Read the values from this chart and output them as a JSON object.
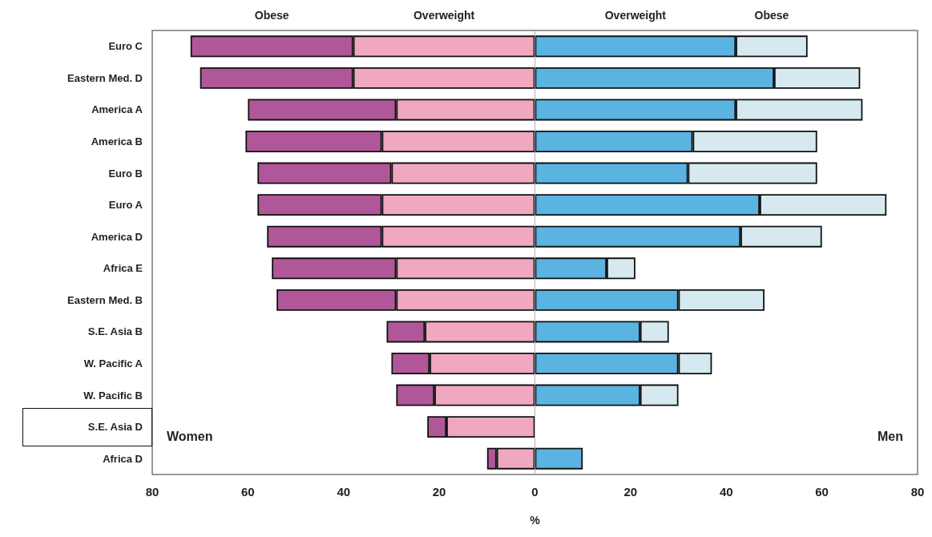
{
  "chart_data": {
    "type": "bar",
    "orientation": "horizontal",
    "stacked": true,
    "xlabel": "%",
    "categories": [
      "Euro C",
      "Eastern Med. D",
      "America A",
      "America B",
      "Euro B",
      "Euro A",
      "America D",
      "Africa E",
      "Eastern Med. B",
      "S.E. Asia B",
      "W. Pacific A",
      "W. Pacific B",
      "S.E. Asia D",
      "Africa D"
    ],
    "series": [
      {
        "name": "Overweight",
        "color": "#f0a7c0",
        "values": [
          -38,
          -38,
          -29,
          -32,
          -30,
          -32,
          -32,
          -29,
          -29,
          -23,
          -22,
          -21,
          -18.5,
          -8
        ]
      },
      {
        "name": "Obese",
        "color": "#b0579a",
        "values": [
          -34,
          -32,
          -31,
          -28.5,
          -28,
          -26,
          -24,
          -26,
          -25,
          -8,
          -8,
          -8,
          -4,
          -2
        ]
      },
      {
        "name": "Overweight",
        "color": "#5ab3e1",
        "values": [
          42,
          50,
          42,
          33,
          32,
          47,
          43,
          15,
          30,
          22,
          30,
          22,
          null,
          10
        ]
      },
      {
        "name": "Obese",
        "color": "#d6e9f1",
        "values": [
          15,
          18,
          26.5,
          26,
          27,
          26.5,
          17,
          6,
          18,
          6,
          7,
          8,
          null,
          null
        ]
      }
    ],
    "xlim": [
      -80,
      80
    ],
    "xticks": [
      {
        "value": -80,
        "label": "80"
      },
      {
        "value": -60,
        "label": "60"
      },
      {
        "value": -40,
        "label": "40"
      },
      {
        "value": -20,
        "label": "20"
      },
      0,
      20,
      40,
      60,
      80
    ],
    "ref_lines": [
      {
        "axis": "x",
        "value": 0,
        "color": "#b0b0b0"
      }
    ],
    "annotations": [
      "Women",
      "Men"
    ],
    "grid": false,
    "legend": "top"
  }
}
